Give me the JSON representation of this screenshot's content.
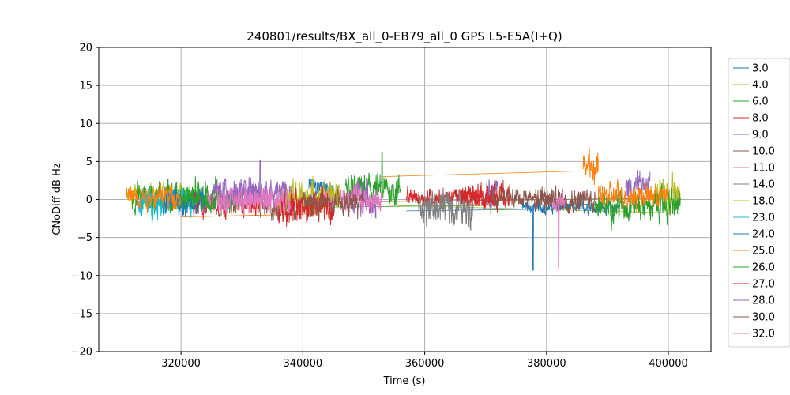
{
  "chart_data": {
    "type": "line",
    "title": "240801/results/BX_all_0-EB79_all_0 GPS L5-E5A(I+Q)",
    "xlabel": "Time (s)",
    "ylabel": "CNoDiff dB Hz",
    "xlim": [
      306500,
      407000
    ],
    "ylim": [
      -20,
      20
    ],
    "xticks": [
      320000,
      340000,
      360000,
      380000,
      400000
    ],
    "xtick_labels": [
      "320000",
      "340000",
      "360000",
      "380000",
      "400000"
    ],
    "yticks": [
      -20,
      -15,
      -10,
      -5,
      0,
      5,
      10,
      15,
      20
    ],
    "ytick_labels": [
      "−20",
      "−15",
      "−10",
      "−5",
      "0",
      "5",
      "10",
      "15",
      "20"
    ],
    "grid": true,
    "legend_position": "outside-right",
    "series": [
      {
        "name": "3.0",
        "color": "#1f77b4",
        "segments": [
          {
            "x": [
              [
                341000,
                345000
              ],
              [
                376000,
                392000
              ]
            ],
            "y": [
              [
                0.5,
                2.5
              ],
              [
                -1.5,
                -0.5
              ]
            ],
            "min": -9.3,
            "min_at": 377800
          }
        ]
      },
      {
        "name": "4.0",
        "color": "#bcbd22",
        "segments": [
          {
            "x": [
              [
                311000,
                322000
              ],
              [
                398000,
                402000
              ]
            ],
            "y": [
              [
                0.0,
                1.5
              ],
              [
                -1.0,
                2.0
              ]
            ]
          }
        ]
      },
      {
        "name": "6.0",
        "color": "#2ca02c",
        "segments": [
          {
            "x": [
              [
                312000,
                326000
              ],
              [
                347000,
                356000
              ],
              [
                388000,
                402000
              ]
            ],
            "y": [
              [
                -1.0,
                1.5
              ],
              [
                0.0,
                2.5
              ],
              [
                -2.0,
                0.5
              ]
            ],
            "max": 6.2,
            "max_at": 353000
          }
        ]
      },
      {
        "name": "8.0",
        "color": "#d62728",
        "segments": [
          {
            "x": [
              [
                322000,
                333000
              ],
              [
                357000,
                372000
              ]
            ],
            "y": [
              [
                -1.5,
                0.5
              ],
              [
                -0.5,
                1.0
              ]
            ]
          }
        ]
      },
      {
        "name": "9.0",
        "color": "#9467bd",
        "segments": [
          {
            "x": [
              [
                330000,
                338000
              ],
              [
                348000,
                352000
              ],
              [
                370000,
                372000
              ],
              [
                393000,
                397000
              ]
            ],
            "y": [
              [
                0.0,
                2.0
              ],
              [
                -1.5,
                1.5
              ],
              [
                0.0,
                2.5
              ],
              [
                0.5,
                3.0
              ]
            ],
            "max": 5.2,
            "max_at": 333000
          }
        ]
      },
      {
        "name": "10.0",
        "color": "#8c564b",
        "segments": [
          {
            "x": [
              [
                333000,
                342000
              ],
              [
                378000,
                388000
              ]
            ],
            "y": [
              [
                -2.0,
                0.0
              ],
              [
                -1.0,
                1.0
              ]
            ]
          }
        ]
      },
      {
        "name": "11.0",
        "color": "#e377c2",
        "segments": [
          {
            "x": [
              [
                323000,
                335000
              ],
              [
                342000,
                353000
              ],
              [
                381000,
                383000
              ]
            ],
            "y": [
              [
                -1.0,
                1.0
              ],
              [
                -1.0,
                1.0
              ],
              [
                -1.0,
                0.5
              ]
            ],
            "min": -9.0,
            "min_at": 382000
          }
        ]
      },
      {
        "name": "14.0",
        "color": "#7f7f7f",
        "segments": [
          {
            "x": [
              [
                359000,
                368000
              ]
            ],
            "y": [
              [
                -2.5,
                0.5
              ]
            ]
          }
        ]
      },
      {
        "name": "18.0",
        "color": "#bcbd22",
        "segments": [
          {
            "x": [
              [
                336000,
                346000
              ]
            ],
            "y": [
              [
                -1.0,
                1.5
              ]
            ]
          }
        ]
      },
      {
        "name": "23.0",
        "color": "#17becf",
        "segments": [
          {
            "x": [
              [
                313000,
                322000
              ]
            ],
            "y": [
              [
                -1.5,
                1.0
              ]
            ]
          }
        ]
      },
      {
        "name": "24.0",
        "color": "#1f77b4",
        "segments": [
          {
            "x": [
              [
                317000,
                324000
              ]
            ],
            "y": [
              [
                -1.5,
                1.0
              ]
            ]
          }
        ]
      },
      {
        "name": "25.0",
        "color": "#ff7f0e",
        "segments": [
          {
            "x": [
              [
                311000,
                320000
              ],
              [
                386000,
                388500
              ],
              [
                388500,
                400000
              ]
            ],
            "y": [
              [
                -0.5,
                1.5
              ],
              [
                3.0,
                5.5
              ],
              [
                -0.5,
                1.5
              ]
            ]
          }
        ]
      },
      {
        "name": "26.0",
        "color": "#2ca02c",
        "segments": [
          {
            "x": [
              [
                320000,
                330000
              ]
            ],
            "y": [
              [
                -1.0,
                1.0
              ]
            ]
          }
        ]
      },
      {
        "name": "27.0",
        "color": "#d62728",
        "segments": [
          {
            "x": [
              [
                336000,
                345000
              ],
              [
                366000,
                374000
              ]
            ],
            "y": [
              [
                -2.5,
                0.5
              ],
              [
                -0.5,
                1.5
              ]
            ]
          }
        ]
      },
      {
        "name": "28.0",
        "color": "#9467bd",
        "segments": [
          {
            "x": [
              [
                325000,
                333000
              ]
            ],
            "y": [
              [
                0.0,
                2.0
              ]
            ]
          }
        ]
      },
      {
        "name": "30.0",
        "color": "#8c564b",
        "segments": [
          {
            "x": [
              [
                340000,
                350000
              ],
              [
                371000,
                381000
              ]
            ],
            "y": [
              [
                -1.5,
                0.5
              ],
              [
                -0.5,
                1.0
              ]
            ]
          }
        ]
      },
      {
        "name": "32.0",
        "color": "#e377c2",
        "segments": [
          {
            "x": [
              [
                326000,
                338000
              ]
            ],
            "y": [
              [
                -1.0,
                1.0
              ]
            ]
          }
        ]
      }
    ],
    "connectors": [
      {
        "series": "25.0",
        "x": [
          353000,
          388000
        ],
        "y": [
          3.0,
          3.8
        ]
      },
      {
        "series": "25.0",
        "x": [
          320000,
          342000
        ],
        "y": [
          -2.3,
          -1.9
        ]
      },
      {
        "series": "4.0",
        "x": [
          342000,
          402000
        ],
        "y": [
          -0.5,
          -1.8
        ]
      },
      {
        "series": "3.0",
        "x": [
          357000,
          386000
        ],
        "y": [
          -1.5,
          -1.2
        ]
      },
      {
        "series": "6.0",
        "x": [
          345000,
          390000
        ],
        "y": [
          -1.0,
          -0.6
        ]
      },
      {
        "series": "10.0",
        "x": [
          350000,
          402000
        ],
        "y": [
          -0.3,
          0.2
        ]
      }
    ]
  }
}
